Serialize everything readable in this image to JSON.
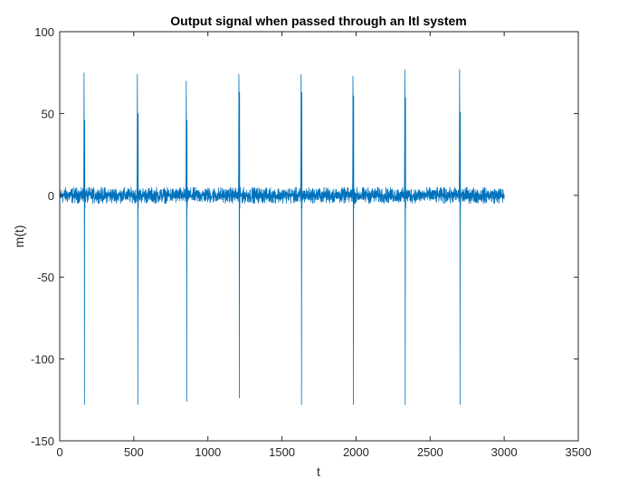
{
  "chart_data": {
    "type": "line",
    "title": "Output signal when passed through an ltl system",
    "xlabel": "t",
    "ylabel": "m(t)",
    "xlim": [
      0,
      3500
    ],
    "ylim": [
      -150,
      100
    ],
    "xticks": [
      0,
      500,
      1000,
      1500,
      2000,
      2500,
      3000,
      3500
    ],
    "xtick_labels": [
      "0",
      "500",
      "1000",
      "1500",
      "2000",
      "2500",
      "3000",
      "3500"
    ],
    "yticks": [
      -150,
      -100,
      -50,
      0,
      50,
      100
    ],
    "ytick_labels": [
      "-150",
      "-100",
      "-50",
      "0",
      "50",
      "100"
    ],
    "grid": false,
    "line_color": "#0072bd",
    "series": [
      {
        "x_range": [
          0,
          3000
        ],
        "baseline_noise_range": [
          -5,
          5
        ],
        "spikes": [
          {
            "t": 165,
            "max": 75,
            "secondary": 46,
            "min": -128
          },
          {
            "t": 525,
            "max": 74,
            "secondary": 50,
            "min": -128
          },
          {
            "t": 855,
            "max": 70,
            "secondary": 46,
            "min": -126
          },
          {
            "t": 1210,
            "max": 74,
            "secondary": 63,
            "min": -124
          },
          {
            "t": 1630,
            "max": 74,
            "secondary": 63,
            "min": -128
          },
          {
            "t": 1980,
            "max": 73,
            "secondary": 61,
            "min": -128
          },
          {
            "t": 2330,
            "max": 77,
            "secondary": 60,
            "min": -128
          },
          {
            "t": 2700,
            "max": 77,
            "secondary": 51,
            "min": -128
          }
        ]
      }
    ]
  }
}
